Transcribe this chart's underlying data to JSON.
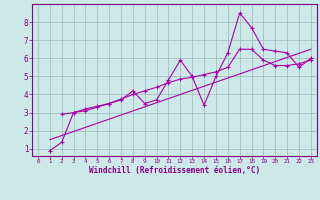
{
  "xlabel": "Windchill (Refroidissement éolien,°C)",
  "bg_color": "#cce8e8",
  "line_color": "#aa00aa",
  "grid_color": "#99bbbb",
  "axis_color": "#880088",
  "xlim": [
    -0.5,
    23.5
  ],
  "ylim": [
    0.6,
    9.0
  ],
  "xticks": [
    0,
    1,
    2,
    3,
    4,
    5,
    6,
    7,
    8,
    9,
    10,
    11,
    12,
    13,
    14,
    15,
    16,
    17,
    18,
    19,
    20,
    21,
    22,
    23
  ],
  "yticks": [
    1,
    2,
    3,
    4,
    5,
    6,
    7,
    8
  ],
  "line1_x": [
    1,
    2,
    3,
    4,
    5,
    6,
    7,
    8,
    9,
    10,
    11,
    12,
    13,
    14,
    15,
    16,
    17,
    18,
    19,
    20,
    21,
    22,
    23
  ],
  "line1_y": [
    0.9,
    1.35,
    3.0,
    3.1,
    3.3,
    3.5,
    3.7,
    4.2,
    3.5,
    3.7,
    4.8,
    5.9,
    5.0,
    3.4,
    5.0,
    6.3,
    8.5,
    7.7,
    6.5,
    6.4,
    6.3,
    5.5,
    6.0
  ],
  "line2_x": [
    2,
    3,
    4,
    5,
    6,
    7,
    8,
    9,
    10,
    11,
    12,
    13,
    14,
    15,
    16,
    17,
    18,
    19,
    20,
    21,
    22,
    23
  ],
  "line2_y": [
    2.9,
    3.0,
    3.2,
    3.35,
    3.5,
    3.75,
    4.0,
    4.2,
    4.4,
    4.65,
    4.85,
    4.95,
    5.1,
    5.25,
    5.5,
    6.5,
    6.5,
    5.9,
    5.6,
    5.6,
    5.7,
    5.9
  ],
  "line3_x": [
    1,
    23
  ],
  "line3_y": [
    1.5,
    6.5
  ]
}
